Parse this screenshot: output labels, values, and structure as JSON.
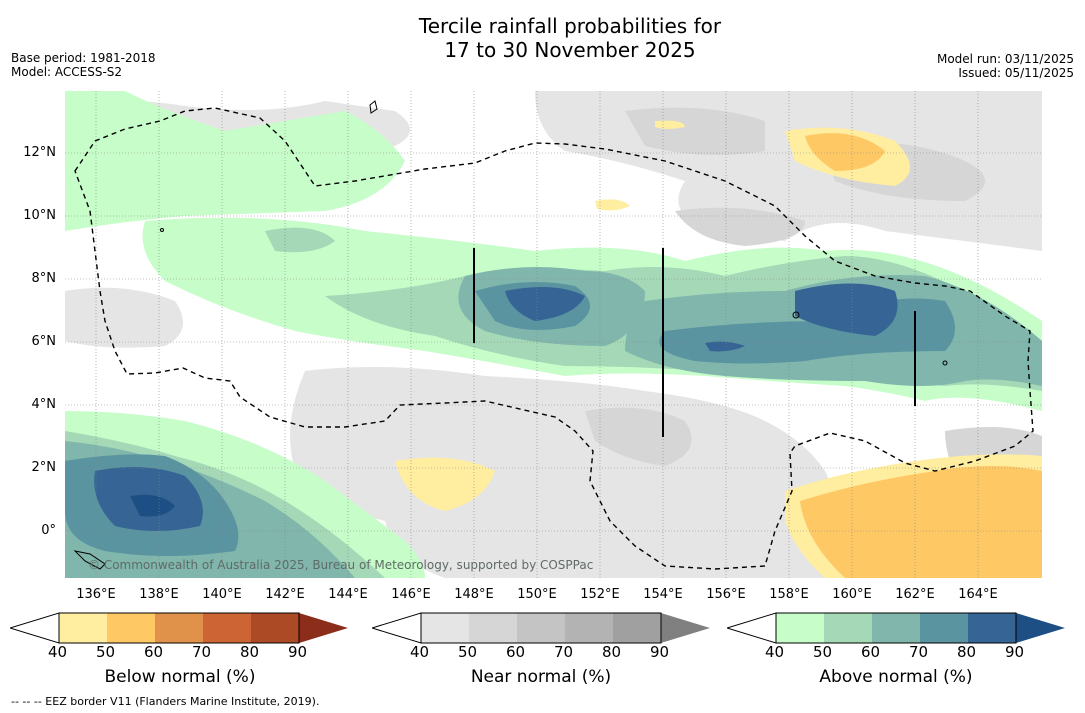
{
  "header": {
    "title_line1": "Tercile rainfall probabilities for",
    "title_line2": "17 to 30 November 2025",
    "base_period": "Base period: 1981-2018",
    "model": "Model: ACCESS-S2",
    "model_run": "Model run: 03/11/2025",
    "issued": "Issued: 05/11/2025"
  },
  "map": {
    "lat_labels": [
      "12°N",
      "10°N",
      "8°N",
      "6°N",
      "4°N",
      "2°N",
      "0°"
    ],
    "lon_labels": [
      "136°E",
      "138°E",
      "140°E",
      "142°E",
      "144°E",
      "146°E",
      "148°E",
      "150°E",
      "152°E",
      "154°E",
      "156°E",
      "158°E",
      "160°E",
      "162°E",
      "164°E"
    ],
    "copyright": "© Commonwealth of Australia 2025, Bureau of Meteorology, supported by COSPPac"
  },
  "colorbars": [
    {
      "label": "Below normal (%)",
      "ticks": [
        "40",
        "50",
        "60",
        "70",
        "80",
        "90"
      ],
      "colors": [
        "#ffeda0",
        "#fec965",
        "#e0924a",
        "#cc6533",
        "#ad4a26",
        "#8c2d1b"
      ]
    },
    {
      "label": "Near normal (%)",
      "ticks": [
        "40",
        "50",
        "60",
        "70",
        "80",
        "90"
      ],
      "colors": [
        "#e5e5e5",
        "#d6d6d6",
        "#c4c4c4",
        "#b3b3b3",
        "#a0a0a0",
        "#808080"
      ]
    },
    {
      "label": "Above normal (%)",
      "ticks": [
        "40",
        "50",
        "60",
        "70",
        "80",
        "90"
      ],
      "colors": [
        "#c7fdc9",
        "#a4d8b6",
        "#80b6ab",
        "#5a94a0",
        "#356495",
        "#1d4f85"
      ]
    }
  ],
  "footer": {
    "note": "--  --  -- EEZ border V11 (Flanders Marine Institute, 2019)."
  }
}
